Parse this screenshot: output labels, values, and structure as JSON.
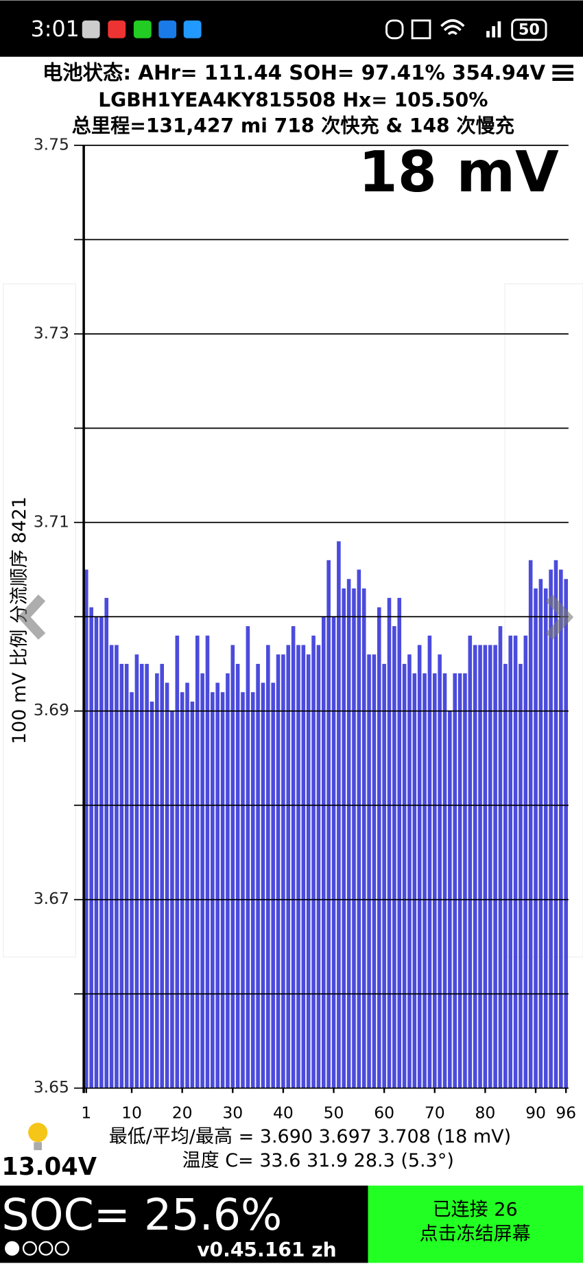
{
  "status_bar": {
    "time": "3:01",
    "battery": "50"
  },
  "header": {
    "line1": "电池状态: AHr= 111.44 SOH= 97.41% 354.94V",
    "line2": "LGBH1YEA4KY815508   Hx= 105.50%",
    "line3": "总里程=131,427 mi 718 次快充 & 148 次慢充"
  },
  "chart_data": {
    "type": "bar",
    "annotation": "18 mV",
    "y_label": "100 mV 比例   分流顺序 8421",
    "x": [
      1,
      2,
      3,
      4,
      5,
      6,
      7,
      8,
      9,
      10,
      11,
      12,
      13,
      14,
      15,
      16,
      17,
      18,
      19,
      20,
      21,
      22,
      23,
      24,
      25,
      26,
      27,
      28,
      29,
      30,
      31,
      32,
      33,
      34,
      35,
      36,
      37,
      38,
      39,
      40,
      41,
      42,
      43,
      44,
      45,
      46,
      47,
      48,
      49,
      50,
      51,
      52,
      53,
      54,
      55,
      56,
      57,
      58,
      59,
      60,
      61,
      62,
      63,
      64,
      65,
      66,
      67,
      68,
      69,
      70,
      71,
      72,
      73,
      74,
      75,
      76,
      77,
      78,
      79,
      80,
      81,
      82,
      83,
      84,
      85,
      86,
      87,
      88,
      89,
      90,
      91,
      92,
      93,
      94,
      95,
      96
    ],
    "values": [
      3.705,
      3.701,
      3.7,
      3.7,
      3.702,
      3.697,
      3.697,
      3.695,
      3.695,
      3.692,
      3.696,
      3.695,
      3.695,
      3.691,
      3.694,
      3.695,
      3.693,
      3.69,
      3.698,
      3.692,
      3.693,
      3.691,
      3.698,
      3.694,
      3.698,
      3.692,
      3.693,
      3.692,
      3.694,
      3.697,
      3.695,
      3.692,
      3.699,
      3.692,
      3.695,
      3.693,
      3.697,
      3.693,
      3.696,
      3.696,
      3.697,
      3.699,
      3.697,
      3.697,
      3.696,
      3.698,
      3.697,
      3.7,
      3.706,
      3.7,
      3.708,
      3.703,
      3.704,
      3.703,
      3.705,
      3.703,
      3.696,
      3.696,
      3.701,
      3.695,
      3.702,
      3.699,
      3.702,
      3.695,
      3.696,
      3.694,
      3.697,
      3.694,
      3.698,
      3.694,
      3.696,
      3.694,
      3.69,
      3.694,
      3.694,
      3.694,
      3.698,
      3.697,
      3.697,
      3.697,
      3.697,
      3.697,
      3.699,
      3.695,
      3.698,
      3.698,
      3.695,
      3.698,
      3.706,
      3.703,
      3.704,
      3.703,
      3.705,
      3.706,
      3.705,
      3.704
    ],
    "color": "#4b4bdc",
    "xlim": [
      0.5,
      96.5
    ],
    "xticks": [
      1,
      10,
      20,
      30,
      40,
      50,
      60,
      70,
      80,
      90,
      96
    ],
    "ylim": [
      3.65,
      3.75
    ],
    "yticks": [
      3.65,
      3.67,
      3.69,
      3.71,
      3.73,
      3.75
    ],
    "minor_yticks": [
      3.66,
      3.68,
      3.7,
      3.72,
      3.74
    ],
    "grid": true
  },
  "stats": {
    "line1": "最低/平均/最高 = 3.690 3.697 3.708  (18 mV)",
    "line2": "温度 C= 33.6  31.9  28.3  (5.3°)"
  },
  "voltage": "13.04V",
  "soc": "SOC= 25.6%",
  "version": "v0.45.161 zh",
  "status": {
    "line1": "已连接 26",
    "line2": "点击冻结屏幕"
  }
}
